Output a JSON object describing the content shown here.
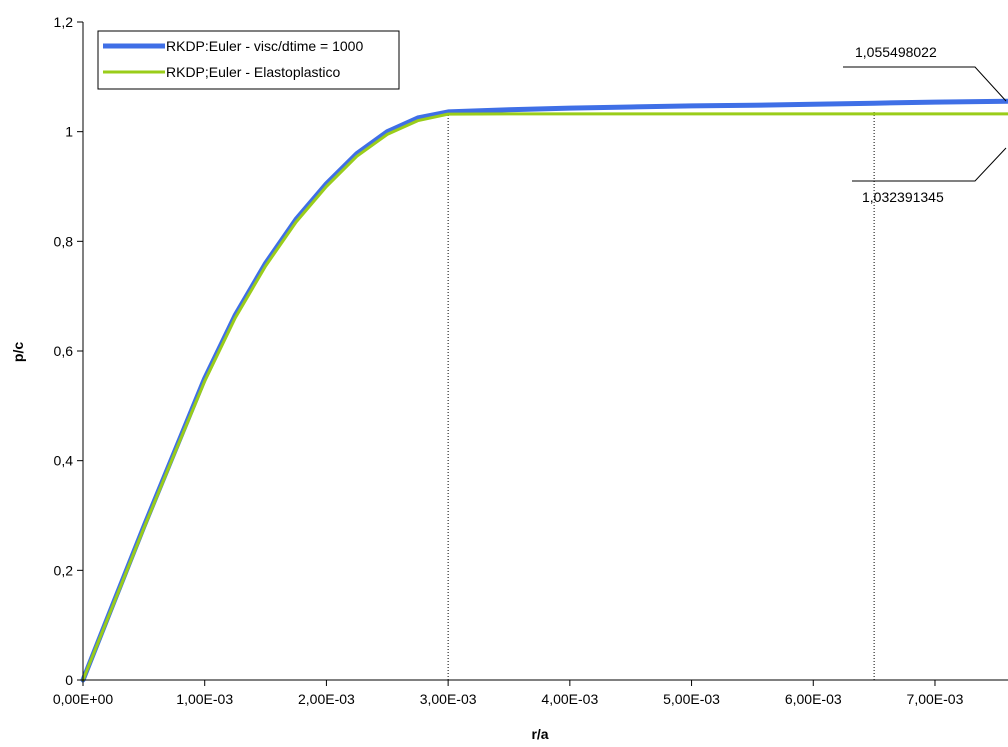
{
  "chart_data": {
    "type": "line",
    "title": "",
    "xlabel": "r/a",
    "ylabel": "p/c",
    "xlim": [
      0,
      0.0076
    ],
    "ylim": [
      0,
      1.2
    ],
    "x_ticks": [
      0,
      0.001,
      0.002,
      0.003,
      0.004,
      0.005,
      0.006,
      0.007
    ],
    "x_tick_labels": [
      "0,00E+00",
      "1,00E-03",
      "2,00E-03",
      "3,00E-03",
      "4,00E-03",
      "5,00E-03",
      "6,00E-03",
      "7,00E-03"
    ],
    "y_ticks": [
      0,
      0.2,
      0.4,
      0.6,
      0.8,
      1.0,
      1.2
    ],
    "y_tick_labels": [
      "0",
      "0,2",
      "0,4",
      "0,6",
      "0,8",
      "1",
      "1,2"
    ],
    "grid": false,
    "legend": "top-left",
    "series": [
      {
        "name": "RKDP:Euler - visc/dtime = 1000",
        "color": "#3F6FE6",
        "x": [
          0,
          0.00025,
          0.0005,
          0.00075,
          0.001,
          0.00125,
          0.0015,
          0.00175,
          0.002,
          0.00225,
          0.0025,
          0.00275,
          0.003,
          0.0035,
          0.004,
          0.0045,
          0.005,
          0.0055,
          0.006,
          0.0065,
          0.007,
          0.0076
        ],
        "y": [
          0,
          0.14,
          0.28,
          0.415,
          0.55,
          0.665,
          0.76,
          0.84,
          0.905,
          0.96,
          1.0,
          1.025,
          1.036,
          1.04,
          1.043,
          1.045,
          1.047,
          1.048,
          1.05,
          1.052,
          1.054,
          1.0555
        ]
      },
      {
        "name": "RKDP;Euler - Elastoplastico",
        "color": "#9ACD1A",
        "x": [
          0,
          0.00025,
          0.0005,
          0.00075,
          0.001,
          0.00125,
          0.0015,
          0.00175,
          0.002,
          0.00225,
          0.0025,
          0.00275,
          0.003,
          0.0035,
          0.004,
          0.0045,
          0.005,
          0.0055,
          0.006,
          0.0065,
          0.007,
          0.0076
        ],
        "y": [
          0,
          0.138,
          0.277,
          0.412,
          0.545,
          0.66,
          0.755,
          0.835,
          0.9,
          0.955,
          0.995,
          1.02,
          1.032,
          1.0324,
          1.0324,
          1.0324,
          1.0324,
          1.0324,
          1.0324,
          1.0324,
          1.0324,
          1.0324
        ]
      }
    ],
    "reference_lines_x": [
      0.003,
      0.0065
    ],
    "annotations": [
      "1,055498022",
      "1,032391345"
    ],
    "axis_color": "#000000"
  }
}
